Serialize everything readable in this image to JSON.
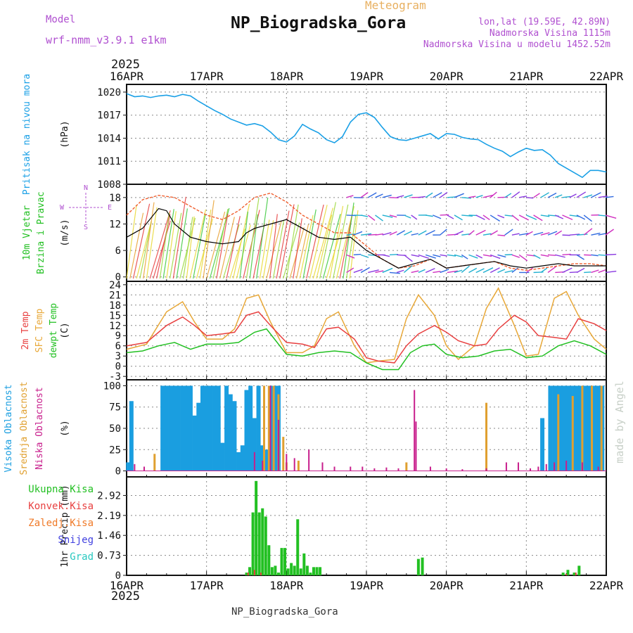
{
  "header": {
    "meteogram_label": "Meteogram",
    "title": "NP_Biogradska_Gora",
    "model_label": "Model",
    "model_name": "wrf-nmm_v3.9.1 e1km",
    "lonlat": "lon,lat (19.59E, 42.89N)",
    "altitude": "Nadmorska Visina 1115m",
    "model_altitude": "Nadmorska Visina u modelu 1452.52m",
    "footer": "NP_Biogradska_Gora",
    "watermark": "made by Angel",
    "year_top": "2025",
    "year_bottom": "2025"
  },
  "colors": {
    "pressure": "#1aa0e6",
    "high_cloud": "#1a9ee0",
    "mid_cloud": "#e0a030",
    "low_cloud": "#c81e8c",
    "temp2m": "#e84040",
    "sfc_temp": "#e8a838",
    "dewpt": "#22c022",
    "precip_total": "#22c022",
    "precip_conv": "#e84040",
    "precip_frozen": "#f07a28",
    "precip_snow": "#4040e0",
    "precip_hail": "#28c8c0",
    "wind_speed": "#000000",
    "wind_gust": "#f06030",
    "model_text": "#b050d0"
  },
  "chart_data": [
    {
      "type": "line",
      "panel": "pressure",
      "ylabel_lines": [
        "Pritisak na nivou mora"
      ],
      "unit": "(hPa)",
      "categories": [
        "16APR",
        "17APR",
        "18APR",
        "19APR",
        "20APR",
        "21APR",
        "22APR"
      ],
      "ylim": [
        1008,
        1021
      ],
      "yticks": [
        "1020",
        "1017",
        "1014",
        "1011",
        "1008"
      ],
      "grid": true,
      "series": [
        {
          "name": "Pritisak na nivou mora",
          "x": [
            0,
            0.1,
            0.2,
            0.3,
            0.4,
            0.5,
            0.6,
            0.7,
            0.8,
            0.9,
            1.0,
            1.1,
            1.2,
            1.3,
            1.5,
            1.6,
            1.7,
            1.8,
            1.9,
            2.0,
            2.1,
            2.2,
            2.3,
            2.4,
            2.5,
            2.6,
            2.7,
            2.8,
            2.9,
            3.0,
            3.1,
            3.2,
            3.3,
            3.4,
            3.5,
            3.6,
            3.7,
            3.8,
            3.9,
            4.0,
            4.1,
            4.2,
            4.3,
            4.4,
            4.5,
            4.6,
            4.7,
            4.8,
            4.9,
            5.0,
            5.1,
            5.2,
            5.3,
            5.4,
            5.5,
            5.6,
            5.7,
            5.8,
            5.9,
            6.0
          ],
          "y": [
            1019.8,
            1019.4,
            1019.5,
            1019.3,
            1019.5,
            1019.6,
            1019.4,
            1019.7,
            1019.5,
            1018.8,
            1018.2,
            1017.6,
            1017.1,
            1016.5,
            1015.7,
            1015.9,
            1015.6,
            1014.8,
            1013.8,
            1013.5,
            1014.3,
            1015.8,
            1015.2,
            1014.7,
            1013.8,
            1013.4,
            1014.2,
            1016.1,
            1017.1,
            1017.3,
            1016.7,
            1015.4,
            1014.2,
            1013.8,
            1013.7,
            1014.0,
            1014.3,
            1014.6,
            1013.9,
            1014.6,
            1014.5,
            1014.1,
            1013.9,
            1013.8,
            1013.2,
            1012.7,
            1012.3,
            1011.6,
            1012.2,
            1012.7,
            1012.4,
            1012.5,
            1011.8,
            1010.7,
            1010.1,
            1009.5,
            1008.9,
            1009.8,
            1009.8,
            1009.6
          ]
        }
      ]
    },
    {
      "type": "line",
      "panel": "wind",
      "ylabel_lines": [
        "10m Vjetar",
        "Brzina i Pravac"
      ],
      "unit": "(m/s)",
      "direction_key": "N S W E",
      "categories": [
        "16APR",
        "17APR",
        "18APR",
        "19APR",
        "20APR",
        "21APR",
        "22APR"
      ],
      "ylim": [
        -1,
        21
      ],
      "yticks": [
        "18",
        "12",
        "6",
        "0"
      ],
      "grid": true,
      "series": [
        {
          "name": "Brzina",
          "x": [
            0,
            0.2,
            0.4,
            0.5,
            0.6,
            0.8,
            1.0,
            1.2,
            1.4,
            1.5,
            1.6,
            1.8,
            2.0,
            2.2,
            2.4,
            2.6,
            2.8,
            3.0,
            3.2,
            3.4,
            3.6,
            3.8,
            4.0,
            4.2,
            4.4,
            4.6,
            4.8,
            5.0,
            5.2,
            5.4,
            5.6,
            5.8,
            6.0
          ],
          "y": [
            9,
            11,
            15.5,
            15,
            12,
            9,
            8,
            7.5,
            8,
            10,
            11,
            12,
            13,
            11,
            9,
            8.5,
            9,
            6,
            4,
            2,
            3,
            4,
            2,
            2.5,
            3,
            3.5,
            2.5,
            2,
            2.5,
            3,
            2.5,
            2.5,
            2.5
          ]
        },
        {
          "name": "Udari",
          "x": [
            0,
            0.2,
            0.4,
            0.6,
            0.8,
            1.0,
            1.2,
            1.4,
            1.6,
            1.8,
            2.0,
            2.2,
            2.4,
            2.6,
            2.8,
            3.0,
            3.2,
            3.4,
            3.6,
            3.8,
            4.0,
            4.2,
            4.4,
            4.6,
            4.8,
            5.0,
            5.2,
            5.4,
            5.6,
            5.8,
            6.0
          ],
          "y": [
            14,
            17.5,
            18.5,
            18,
            16,
            14,
            13,
            15,
            18,
            19,
            17,
            14,
            12,
            10,
            10,
            7,
            4,
            2,
            2.5,
            4,
            2,
            2.5,
            3,
            3.5,
            2,
            1.5,
            2,
            2.5,
            3,
            3,
            2.5
          ]
        }
      ]
    },
    {
      "type": "line",
      "panel": "temperature",
      "ylabel_lines": [
        "2m Temp",
        "SFC Temp",
        "dewpt Temp"
      ],
      "unit": "(C)",
      "categories": [
        "16APR",
        "17APR",
        "18APR",
        "19APR",
        "20APR",
        "21APR",
        "22APR"
      ],
      "ylim": [
        -4,
        25
      ],
      "yticks": [
        "24",
        "21",
        "18",
        "15",
        "12",
        "9",
        "6",
        "3",
        "0",
        "-3"
      ],
      "grid": true,
      "series": [
        {
          "name": "2m Temp",
          "x": [
            0,
            0.25,
            0.5,
            0.7,
            0.85,
            1.0,
            1.2,
            1.35,
            1.5,
            1.65,
            1.8,
            2.0,
            2.2,
            2.35,
            2.5,
            2.65,
            2.85,
            3.0,
            3.15,
            3.35,
            3.5,
            3.65,
            3.85,
            4.0,
            4.15,
            4.35,
            4.5,
            4.65,
            4.85,
            5.0,
            5.15,
            5.35,
            5.5,
            5.65,
            5.85,
            6.0
          ],
          "y": [
            6,
            7,
            12,
            14.5,
            12,
            9,
            9.5,
            10,
            15,
            16,
            12,
            7,
            6.5,
            5.5,
            11,
            11.5,
            8,
            2.5,
            1.5,
            1,
            6,
            9.5,
            12,
            10,
            7.5,
            6,
            6.5,
            11,
            15,
            13,
            9,
            8.5,
            8,
            14,
            12.5,
            10.5
          ]
        },
        {
          "name": "SFC Temp",
          "x": [
            0,
            0.25,
            0.5,
            0.7,
            0.85,
            1.0,
            1.2,
            1.35,
            1.5,
            1.65,
            1.8,
            2.0,
            2.2,
            2.35,
            2.5,
            2.65,
            2.85,
            3.0,
            3.15,
            3.35,
            3.5,
            3.65,
            3.85,
            4.0,
            4.15,
            4.35,
            4.5,
            4.65,
            4.85,
            5.0,
            5.15,
            5.35,
            5.5,
            5.65,
            5.85,
            6.0
          ],
          "y": [
            5,
            6.5,
            16,
            19,
            13,
            8,
            8,
            11,
            20,
            21,
            13,
            4,
            4,
            6,
            14,
            16,
            6,
            1,
            1.5,
            2,
            14,
            21,
            15,
            6,
            2,
            6,
            17,
            23,
            12,
            3,
            3.5,
            20,
            22,
            15,
            8,
            5
          ]
        },
        {
          "name": "dewpt Temp",
          "x": [
            0,
            0.2,
            0.4,
            0.6,
            0.8,
            1.0,
            1.2,
            1.4,
            1.6,
            1.75,
            1.85,
            2.0,
            2.2,
            2.4,
            2.6,
            2.8,
            3.0,
            3.2,
            3.4,
            3.55,
            3.7,
            3.85,
            4.0,
            4.2,
            4.4,
            4.6,
            4.8,
            5.0,
            5.2,
            5.4,
            5.6,
            5.8,
            6.0
          ],
          "y": [
            4,
            4.5,
            6,
            7,
            5,
            6.5,
            6.5,
            7,
            10,
            11,
            8,
            3.5,
            3,
            4,
            4.5,
            4,
            1,
            -1,
            -1,
            4,
            6,
            6.5,
            3.5,
            2.5,
            3,
            4.5,
            5,
            2.5,
            3,
            6,
            7.5,
            6,
            3.5
          ]
        }
      ]
    },
    {
      "type": "bar",
      "panel": "clouds",
      "ylabel_lines": [
        "Visoka Oblacnost",
        "Srednja Oblacnost",
        "Niska Oblacnost"
      ],
      "unit": "(%)",
      "categories": [
        "16APR",
        "17APR",
        "18APR",
        "19APR",
        "20APR",
        "21APR",
        "22APR"
      ],
      "ylim": [
        0,
        100
      ],
      "yticks": [
        "100",
        "75",
        "50",
        "25",
        "0"
      ],
      "grid": true,
      "series": [
        {
          "name": "Visoka Oblacnost",
          "x": [
            0.02,
            0.06,
            0.45,
            0.5,
            0.55,
            0.6,
            0.65,
            0.7,
            0.75,
            0.8,
            0.85,
            0.9,
            0.95,
            1.0,
            1.05,
            1.1,
            1.15,
            1.2,
            1.25,
            1.3,
            1.35,
            1.4,
            1.45,
            1.5,
            1.55,
            1.6,
            1.65,
            1.7,
            1.75,
            1.8,
            1.85,
            1.9,
            5.2,
            5.3,
            5.35,
            5.4,
            5.45,
            5.5,
            5.55,
            5.6,
            5.65,
            5.7,
            5.75,
            5.8,
            5.85,
            5.9,
            5.95
          ],
          "y": [
            10,
            82,
            100,
            100,
            100,
            100,
            100,
            100,
            100,
            100,
            65,
            80,
            100,
            100,
            100,
            100,
            100,
            33,
            100,
            90,
            82,
            22,
            30,
            95,
            100,
            62,
            100,
            30,
            25,
            100,
            100,
            100,
            62,
            100,
            100,
            100,
            100,
            100,
            100,
            100,
            100,
            100,
            100,
            100,
            100,
            100,
            100
          ]
        },
        {
          "name": "Srednja Oblacnost",
          "x": [
            0.35,
            1.72,
            1.78,
            1.84,
            1.9,
            1.96,
            2.0,
            2.15,
            3.5,
            4.5,
            5.4,
            5.58,
            5.7,
            5.82,
            5.94
          ],
          "y": [
            20,
            100,
            100,
            100,
            90,
            40,
            10,
            12,
            10,
            80,
            90,
            88,
            100,
            100,
            100
          ]
        },
        {
          "name": "Niska Oblacnost",
          "x": [
            0.1,
            0.22,
            1.6,
            1.7,
            1.8,
            1.9,
            2.0,
            2.1,
            2.28,
            2.45,
            2.6,
            2.8,
            2.95,
            3.1,
            3.25,
            3.4,
            3.6,
            3.62,
            3.8,
            4.0,
            4.2,
            4.5,
            4.75,
            4.9,
            5.05,
            5.15,
            5.25,
            5.35,
            5.5,
            5.7,
            5.9
          ],
          "y": [
            8,
            5,
            22,
            12,
            100,
            60,
            20,
            15,
            25,
            10,
            5,
            5,
            5,
            3,
            4,
            3,
            95,
            58,
            5,
            3,
            2,
            3,
            10,
            10,
            3,
            5,
            8,
            10,
            12,
            10,
            5
          ]
        }
      ]
    },
    {
      "type": "bar",
      "panel": "precip",
      "ylabel_lines": [
        "Ukupna Kisa",
        "Konvek.Kisa",
        "Zaledj.Kisa",
        "Snijeg",
        "Grad"
      ],
      "unit": "1hr Precip (mm)",
      "categories": [
        "16APR",
        "17APR",
        "18APR",
        "19APR",
        "20APR",
        "21APR",
        "22APR"
      ],
      "xtick_labels": [
        "16APR",
        "17APR",
        "18APR",
        "19APR",
        "20APR",
        "21APR",
        "22APR"
      ],
      "ylim": [
        0,
        3.6
      ],
      "yticks": [
        "2.92",
        "2.19",
        "1.46",
        "0.73",
        "0"
      ],
      "grid": true,
      "series": [
        {
          "name": "Ukupna Kisa",
          "x": [
            1.5,
            1.54,
            1.58,
            1.62,
            1.66,
            1.7,
            1.74,
            1.78,
            1.82,
            1.86,
            1.9,
            1.94,
            1.98,
            2.02,
            2.06,
            2.1,
            2.14,
            2.18,
            2.22,
            2.26,
            2.3,
            2.34,
            2.38,
            2.42,
            3.65,
            3.7,
            5.46,
            5.52,
            5.6,
            5.66
          ],
          "y": [
            0.1,
            0.3,
            2.3,
            3.45,
            2.3,
            2.45,
            2.15,
            1.1,
            0.3,
            0.35,
            0.1,
            1.0,
            1.0,
            0.25,
            0.45,
            0.35,
            2.05,
            0.25,
            0.8,
            0.35,
            0.1,
            0.3,
            0.3,
            0.3,
            0.6,
            0.65,
            0.1,
            0.2,
            0.1,
            0.35
          ]
        },
        {
          "name": "Konvek.Kisa",
          "x": [
            1.52,
            1.6,
            1.68,
            5.5,
            5.62
          ],
          "y": [
            0.1,
            0.2,
            0.1,
            0.05,
            0.1
          ]
        }
      ]
    }
  ]
}
